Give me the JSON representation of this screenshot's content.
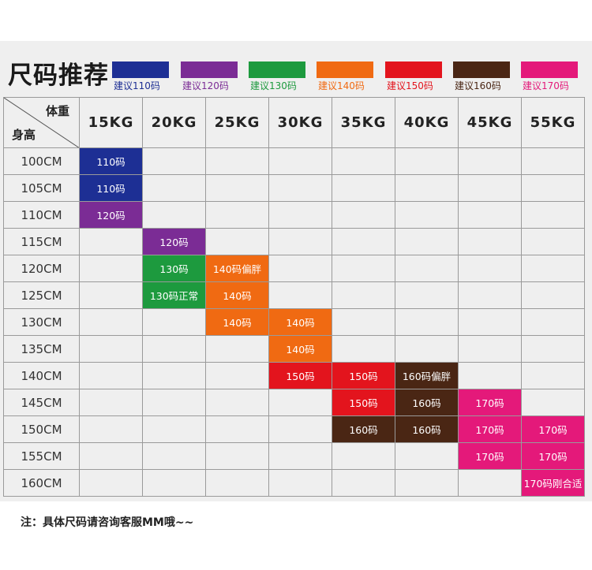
{
  "title": "尺码推荐",
  "legend": [
    {
      "label": "建议110码",
      "color": "#1d2f94"
    },
    {
      "label": "建议120码",
      "color": "#7b2c95"
    },
    {
      "label": "建议130码",
      "color": "#1d9a3e"
    },
    {
      "label": "建议140码",
      "color": "#f06a12"
    },
    {
      "label": "建议150码",
      "color": "#e3141d"
    },
    {
      "label": "建议160码",
      "color": "#4a2614"
    },
    {
      "label": "建议170码",
      "color": "#e4197a"
    }
  ],
  "table": {
    "corner_weight": "体重",
    "corner_height": "身高",
    "columns": [
      "15KG",
      "20KG",
      "25KG",
      "30KG",
      "35KG",
      "40KG",
      "45KG",
      "55KG"
    ],
    "rows": [
      "100CM",
      "105CM",
      "110CM",
      "115CM",
      "120CM",
      "125CM",
      "130CM",
      "135CM",
      "140CM",
      "145CM",
      "150CM",
      "155CM",
      "160CM"
    ],
    "cells": [
      [
        "110码",
        "",
        "",
        "",
        "",
        "",
        "",
        ""
      ],
      [
        "110码",
        "",
        "",
        "",
        "",
        "",
        "",
        ""
      ],
      [
        "120码",
        "",
        "",
        "",
        "",
        "",
        "",
        ""
      ],
      [
        "",
        "120码",
        "",
        "",
        "",
        "",
        "",
        ""
      ],
      [
        "",
        "130码",
        "140码偏胖",
        "",
        "",
        "",
        "",
        ""
      ],
      [
        "",
        "130码正常",
        "140码",
        "",
        "",
        "",
        "",
        ""
      ],
      [
        "",
        "",
        "140码",
        "140码",
        "",
        "",
        "",
        ""
      ],
      [
        "",
        "",
        "",
        "140码",
        "",
        "",
        "",
        ""
      ],
      [
        "",
        "",
        "",
        "150码",
        "150码",
        "160码偏胖",
        "",
        ""
      ],
      [
        "",
        "",
        "",
        "",
        "150码",
        "160码",
        "170码",
        ""
      ],
      [
        "",
        "",
        "",
        "",
        "160码",
        "160码",
        "170码",
        "170码"
      ],
      [
        "",
        "",
        "",
        "",
        "",
        "",
        "170码",
        "170码"
      ],
      [
        "",
        "",
        "",
        "",
        "",
        "",
        "",
        "170码刚合适"
      ]
    ],
    "size_colors": {
      "110": "#1d2f94",
      "120": "#7b2c95",
      "130": "#1d9a3e",
      "140": "#f06a12",
      "150": "#e3141d",
      "160": "#4a2614",
      "170": "#e4197a"
    }
  },
  "note": "注：具体尺码请咨询客服MM哦~~"
}
